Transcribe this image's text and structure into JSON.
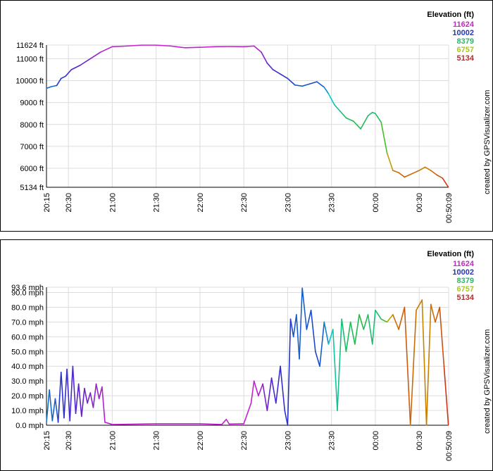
{
  "credit": "created by GPSVisualizer.com",
  "legend": {
    "title": "Elevation (ft)",
    "entries": [
      {
        "label": "11624",
        "color": "#cc22cc"
      },
      {
        "label": "10002",
        "color": "#2233cc"
      },
      {
        "label": "8379",
        "color": "#22bb66"
      },
      {
        "label": "6757",
        "color": "#aacc00"
      },
      {
        "label": "5134",
        "color": "#cc2222"
      }
    ]
  },
  "x_ticks": [
    "20:15",
    "20:30",
    "21:00",
    "21:30",
    "22:00",
    "22:30",
    "23:00",
    "23:30",
    "00:00",
    "00:30",
    "00:50:09"
  ],
  "chart_data": [
    {
      "type": "line",
      "xlabel": "",
      "ylabel": "",
      "xlim": [
        "20:15",
        "00:50:09"
      ],
      "ylim": [
        5134,
        11624
      ],
      "y_ticks": [
        "11624 ft",
        "11000 ft",
        "10000 ft",
        "9000 ft",
        "8000 ft",
        "7000 ft",
        "6000 ft",
        "5134 ft"
      ],
      "y_tick_values": [
        11624,
        11000,
        10000,
        9000,
        8000,
        7000,
        6000,
        5134
      ],
      "grid": true,
      "color_by": "elevation",
      "x": [
        "20:15",
        "20:18",
        "20:22",
        "20:25",
        "20:28",
        "20:32",
        "20:38",
        "20:45",
        "20:52",
        "21:00",
        "21:10",
        "21:20",
        "21:30",
        "21:40",
        "21:50",
        "22:00",
        "22:10",
        "22:20",
        "22:30",
        "22:37",
        "22:42",
        "22:46",
        "22:50",
        "22:55",
        "23:00",
        "23:05",
        "23:10",
        "23:15",
        "23:20",
        "23:25",
        "23:28",
        "23:32",
        "23:36",
        "23:40",
        "23:45",
        "23:50",
        "23:55",
        "23:58",
        "24:00",
        "24:04",
        "24:08",
        "24:12",
        "24:16",
        "24:20",
        "24:25",
        "24:30",
        "24:34",
        "24:38",
        "24:42",
        "24:46",
        "24:50"
      ],
      "y": [
        9650,
        9720,
        9780,
        10100,
        10200,
        10500,
        10700,
        11000,
        11300,
        11550,
        11580,
        11620,
        11620,
        11580,
        11500,
        11520,
        11550,
        11560,
        11550,
        11580,
        11300,
        10800,
        10500,
        10300,
        10100,
        9800,
        9750,
        9850,
        9950,
        9700,
        9400,
        8900,
        8600,
        8300,
        8150,
        7800,
        8400,
        8550,
        8500,
        8100,
        6700,
        5900,
        5800,
        5600,
        5750,
        5900,
        6050,
        5900,
        5700,
        5550,
        5134
      ]
    },
    {
      "type": "line",
      "xlabel": "",
      "ylabel": "",
      "xlim": [
        "20:15",
        "00:50:09"
      ],
      "ylim": [
        0,
        93.6
      ],
      "y_ticks": [
        "93.6 mph",
        "90.0 mph",
        "80.0 mph",
        "70.0 mph",
        "60.0 mph",
        "50.0 mph",
        "40.0 mph",
        "30.0 mph",
        "20.0 mph",
        "10.0 mph",
        "0.0 mph"
      ],
      "y_tick_values": [
        93.6,
        90,
        80,
        70,
        60,
        50,
        40,
        30,
        20,
        10,
        0
      ],
      "grid": true,
      "color_by": "elevation",
      "x": [
        "20:15",
        "20:17",
        "20:19",
        "20:21",
        "20:23",
        "20:25",
        "20:27",
        "20:29",
        "20:31",
        "20:33",
        "20:35",
        "20:37",
        "20:39",
        "20:41",
        "20:43",
        "20:45",
        "20:47",
        "20:49",
        "20:51",
        "20:53",
        "20:55",
        "21:00",
        "21:30",
        "22:00",
        "22:15",
        "22:18",
        "22:20",
        "22:30",
        "22:35",
        "22:37",
        "22:40",
        "22:43",
        "22:46",
        "22:49",
        "22:52",
        "22:55",
        "22:58",
        "23:00",
        "23:02",
        "23:04",
        "23:06",
        "23:08",
        "23:10",
        "23:13",
        "23:16",
        "23:19",
        "23:22",
        "23:25",
        "23:28",
        "23:31",
        "23:34",
        "23:37",
        "23:40",
        "23:43",
        "23:46",
        "23:49",
        "23:52",
        "23:55",
        "23:58",
        "24:00",
        "24:04",
        "24:08",
        "24:12",
        "24:16",
        "24:20",
        "24:24",
        "24:28",
        "24:32",
        "24:35",
        "24:38",
        "24:41",
        "24:44",
        "24:47",
        "24:50"
      ],
      "y": [
        2,
        24,
        3,
        18,
        2,
        36,
        5,
        38,
        3,
        40,
        8,
        28,
        6,
        25,
        15,
        22,
        12,
        28,
        18,
        26,
        2,
        0.5,
        1,
        1,
        0.5,
        4,
        0.8,
        1,
        15,
        30,
        20,
        28,
        10,
        32,
        15,
        40,
        10,
        0,
        72,
        60,
        75,
        45,
        93,
        65,
        78,
        50,
        40,
        70,
        55,
        65,
        10,
        72,
        50,
        70,
        55,
        75,
        65,
        75,
        55,
        78,
        72,
        70,
        75,
        65,
        80,
        0,
        78,
        85,
        0,
        82,
        70,
        80,
        40,
        0
      ]
    }
  ]
}
